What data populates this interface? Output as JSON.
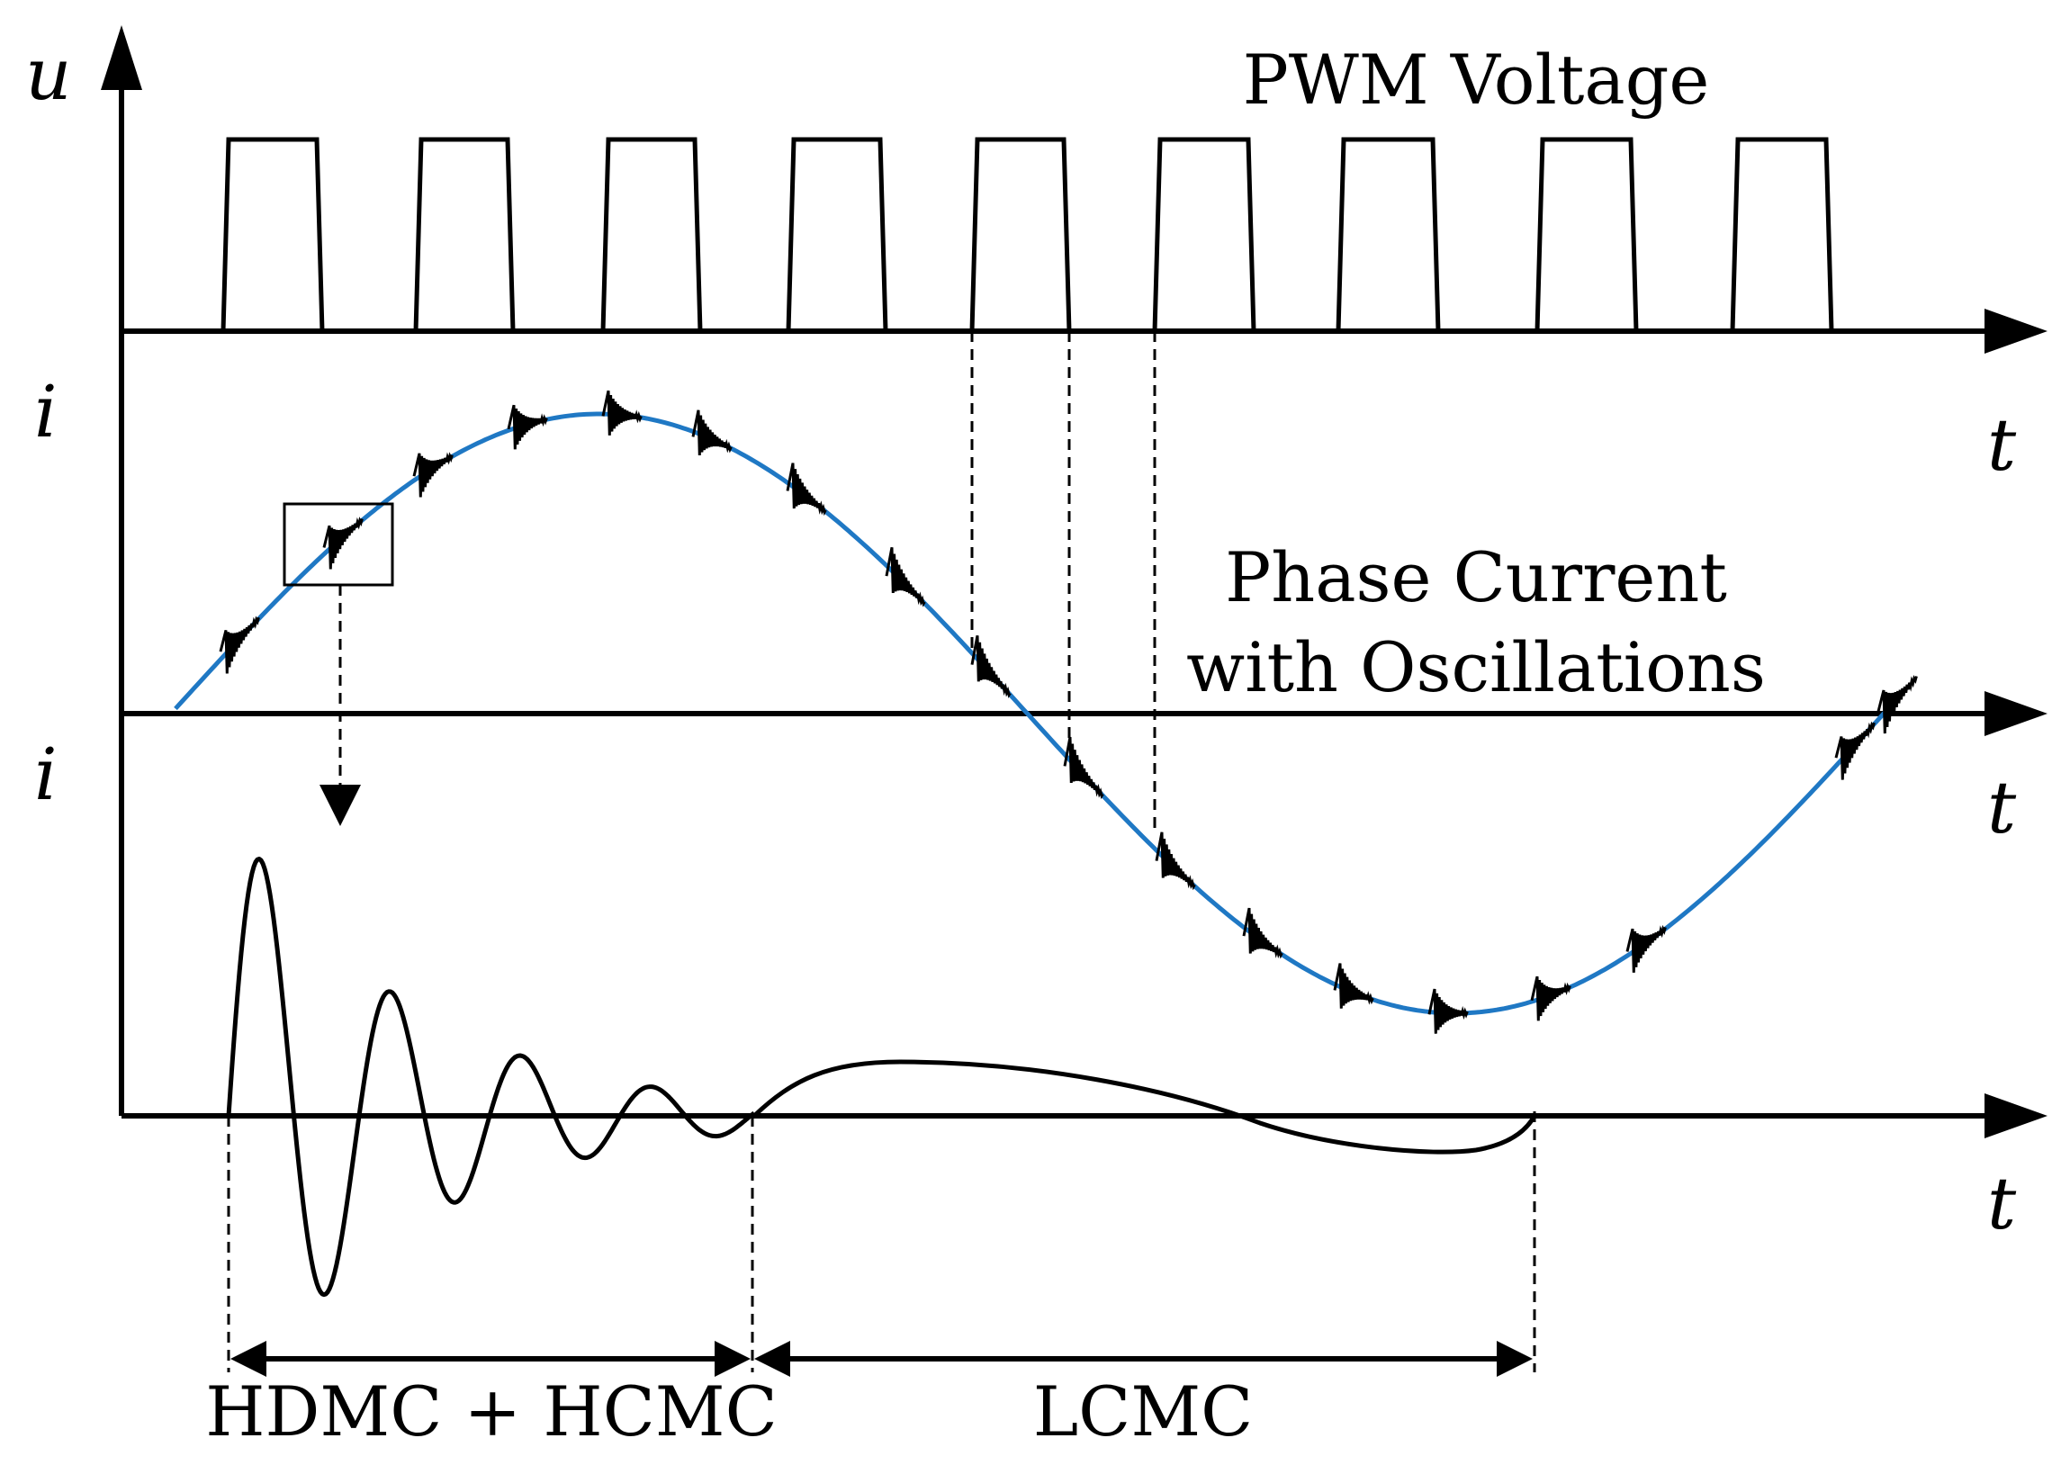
{
  "labels": {
    "u_axis": "u",
    "i_axis_mid": "i",
    "i_axis_bottom": "i",
    "t_axis_top": "t",
    "t_axis_mid": "t",
    "t_axis_bottom": "t",
    "pwm_title": "PWM Voltage",
    "phase_title_line1": "Phase Current",
    "phase_title_line2": "with Oscillations",
    "span_left": "HDMC + HCMC",
    "span_right": "LCMC"
  },
  "colors": {
    "axis": "#000000",
    "phase_current": "#1f78c4",
    "oscillation": "#000000"
  },
  "icons": {
    "zoom_arrow": "down-arrow-icon",
    "span_arrows": "double-headed-arrow-icon"
  }
}
